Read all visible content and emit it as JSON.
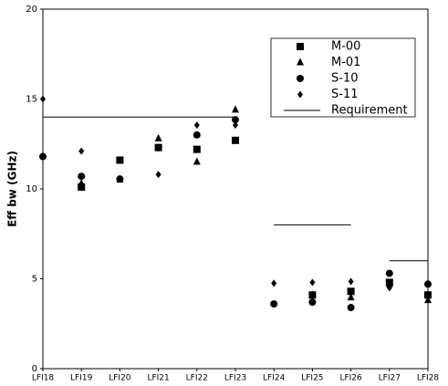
{
  "chart_data": {
    "type": "scatter",
    "y_label": "Eff bw (GHz)",
    "categories": [
      "LFI18",
      "LFI19",
      "LFI20",
      "LFI21",
      "LFI22",
      "LFI23",
      "LFI24",
      "LFI25",
      "LFI26",
      "LFI27",
      "LFI28"
    ],
    "ylim": [
      0,
      20
    ],
    "yticks": [
      0,
      5,
      10,
      15,
      20
    ],
    "series": [
      {
        "name": "M-00",
        "marker": "square",
        "color": "#000000",
        "values": [
          null,
          10.1,
          11.6,
          12.3,
          12.2,
          12.7,
          null,
          4.1,
          4.3,
          4.8,
          4.1
        ]
      },
      {
        "name": "M-01",
        "marker": "triangle",
        "color": "#000000",
        "values": [
          null,
          10.3,
          10.5,
          12.8,
          11.5,
          14.4,
          null,
          4.1,
          3.95,
          4.7,
          3.8
        ]
      },
      {
        "name": "S-10",
        "marker": "circle",
        "color": "#000000",
        "values": [
          11.8,
          10.7,
          10.55,
          12.3,
          13.0,
          13.85,
          3.6,
          3.7,
          3.4,
          5.3,
          4.7
        ]
      },
      {
        "name": "S-11",
        "marker": "diamond",
        "color": "#000000",
        "values": [
          15.0,
          12.1,
          null,
          10.8,
          13.55,
          13.55,
          4.75,
          4.8,
          4.85,
          4.5,
          4.75
        ]
      },
      {
        "name": "Requirement",
        "marker": "line",
        "color": "#000000",
        "values": [
          14,
          14,
          14,
          14,
          14,
          14,
          8,
          8,
          8,
          6,
          6
        ]
      }
    ]
  }
}
